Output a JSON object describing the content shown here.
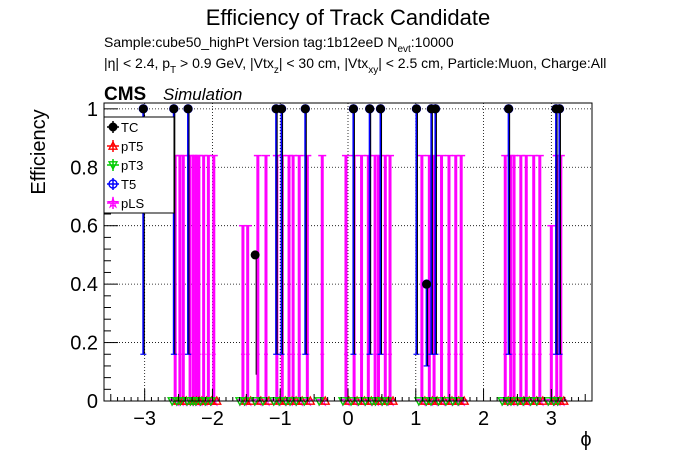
{
  "chart_data": {
    "type": "scatter",
    "title": "Efficiency of Track Candidate",
    "info_line1": "Sample:cube50_highPt   Version tag:1b12eeD  N",
    "info_line1_sub": "evt",
    "info_line1_end": ":10000",
    "info_line2_a": "|η| < 2.4, p",
    "info_line2_sub1": "T",
    "info_line2_b": " > 0.9 GeV, |Vtx",
    "info_line2_sub2": "z",
    "info_line2_c": "| < 30 cm, |Vtx",
    "info_line2_sub3": "xy",
    "info_line2_d": "| < 2.5 cm, Particle:Muon, Charge:All",
    "cms_label": "CMS",
    "simulation_label": "Simulation",
    "xlabel": "ϕ",
    "ylabel": "Efficiency",
    "xlim": [
      -3.6,
      3.6
    ],
    "ylim": [
      0,
      1.02
    ],
    "xticks": [
      -3,
      -2,
      -1,
      0,
      1,
      2,
      3
    ],
    "xtick_labels": [
      "−3",
      "−2",
      "−1",
      "0",
      "1",
      "2",
      "3"
    ],
    "yticks": [
      0,
      0.2,
      0.4,
      0.6,
      0.8,
      1
    ],
    "ytick_labels": [
      "0",
      "0.2",
      "0.4",
      "0.6",
      "0.8",
      "1"
    ],
    "grid": true,
    "legend_position": "top-left",
    "series": [
      {
        "name": "TC",
        "color": "#000000",
        "marker": "filled-circle",
        "points": [
          {
            "x": -3.02,
            "y": 1,
            "lo": 0.16
          },
          {
            "x": -2.57,
            "y": 1,
            "lo": 0.16
          },
          {
            "x": -2.36,
            "y": 1,
            "lo": 0.16
          },
          {
            "x": -1.37,
            "y": 0.5,
            "lo": 0.09
          },
          {
            "x": -1.06,
            "y": 1,
            "lo": 0.16
          },
          {
            "x": -0.98,
            "y": 1,
            "lo": 0.16
          },
          {
            "x": -0.63,
            "y": 1,
            "lo": 0.16
          },
          {
            "x": 0.08,
            "y": 1,
            "lo": 0.16
          },
          {
            "x": 0.32,
            "y": 1,
            "lo": 0.16
          },
          {
            "x": 0.48,
            "y": 1,
            "lo": 0.16
          },
          {
            "x": 1.01,
            "y": 1,
            "lo": 0.16
          },
          {
            "x": 1.16,
            "y": 0.4,
            "lo": 0.12
          },
          {
            "x": 1.23,
            "y": 1,
            "lo": 0.16
          },
          {
            "x": 1.29,
            "y": 1,
            "lo": 0.16
          },
          {
            "x": 2.37,
            "y": 1,
            "lo": 0.16
          },
          {
            "x": 3.07,
            "y": 1,
            "lo": 0.16
          },
          {
            "x": 3.12,
            "y": 1,
            "lo": 0.16
          }
        ]
      },
      {
        "name": "pT5",
        "color": "#ff0000",
        "marker": "open-triangle",
        "points": []
      },
      {
        "name": "pT3",
        "color": "#00cc00",
        "marker": "open-triangle-down",
        "points": []
      },
      {
        "name": "T5",
        "color": "#0000ff",
        "marker": "open-circle",
        "points": [
          {
            "x": -3.02,
            "y": 1,
            "lo": 0.16
          },
          {
            "x": -2.57,
            "y": 1,
            "lo": 0.16
          },
          {
            "x": -2.36,
            "y": 1,
            "lo": 0.16
          },
          {
            "x": -1.06,
            "y": 1,
            "lo": 0.16
          },
          {
            "x": -0.98,
            "y": 1,
            "lo": 0.16
          },
          {
            "x": -0.63,
            "y": 1,
            "lo": 0.16
          },
          {
            "x": 0.08,
            "y": 1,
            "lo": 0.16
          },
          {
            "x": 0.32,
            "y": 1,
            "lo": 0.16
          },
          {
            "x": 0.48,
            "y": 1,
            "lo": 0.16
          },
          {
            "x": 1.01,
            "y": 1,
            "lo": 0.16
          },
          {
            "x": 1.16,
            "y": 0.4,
            "lo": 0.12
          },
          {
            "x": 1.23,
            "y": 1,
            "lo": 0.16
          },
          {
            "x": 1.29,
            "y": 1,
            "lo": 0.16
          },
          {
            "x": 2.37,
            "y": 1,
            "lo": 0.16
          },
          {
            "x": 3.07,
            "y": 1,
            "lo": 0.16
          },
          {
            "x": 3.12,
            "y": 1,
            "lo": 0.16
          }
        ]
      },
      {
        "name": "pLS",
        "color": "#ff00ff",
        "marker": "open-star",
        "points": [
          {
            "x": -2.55,
            "y": 0,
            "hi": 0.84
          },
          {
            "x": -2.48,
            "y": 0,
            "hi": 0.84
          },
          {
            "x": -2.43,
            "y": 0,
            "hi": 0.84
          },
          {
            "x": -2.33,
            "y": 0,
            "hi": 0.84
          },
          {
            "x": -2.28,
            "y": 0,
            "hi": 0.84
          },
          {
            "x": -2.24,
            "y": 0,
            "hi": 0.84
          },
          {
            "x": -2.2,
            "y": 0,
            "hi": 0.84
          },
          {
            "x": -2.13,
            "y": 0,
            "hi": 0.84
          },
          {
            "x": -2.06,
            "y": 0,
            "hi": 0.84
          },
          {
            "x": -1.98,
            "y": 0,
            "hi": 0.84
          },
          {
            "x": -1.55,
            "y": 0,
            "hi": 0.6
          },
          {
            "x": -1.48,
            "y": 0,
            "hi": 0.6
          },
          {
            "x": -1.33,
            "y": 0,
            "hi": 0.84
          },
          {
            "x": -1.21,
            "y": 0,
            "hi": 0.84
          },
          {
            "x": -1.05,
            "y": 0,
            "hi": 0.84
          },
          {
            "x": -0.97,
            "y": 0,
            "hi": 0.84
          },
          {
            "x": -0.87,
            "y": 0,
            "hi": 0.84
          },
          {
            "x": -0.81,
            "y": 0,
            "hi": 0.84
          },
          {
            "x": -0.72,
            "y": 0,
            "hi": 0.84
          },
          {
            "x": -0.6,
            "y": 0,
            "hi": 0.84
          },
          {
            "x": -0.38,
            "y": 0,
            "hi": 0.84
          },
          {
            "x": -0.03,
            "y": 0,
            "hi": 0.84
          },
          {
            "x": 0.09,
            "y": 0,
            "hi": 0.84
          },
          {
            "x": 0.2,
            "y": 0,
            "hi": 0.84
          },
          {
            "x": 0.3,
            "y": 0,
            "hi": 0.84
          },
          {
            "x": 0.4,
            "y": 0,
            "hi": 0.84
          },
          {
            "x": 0.45,
            "y": 0,
            "hi": 0.84
          },
          {
            "x": 0.55,
            "y": 0,
            "hi": 0.84
          },
          {
            "x": 0.62,
            "y": 0,
            "hi": 0.84
          },
          {
            "x": 1.09,
            "y": 0,
            "hi": 0.84
          },
          {
            "x": 1.2,
            "y": 0,
            "hi": 0.84
          },
          {
            "x": 1.27,
            "y": 0,
            "hi": 0.84
          },
          {
            "x": 1.38,
            "y": 0,
            "hi": 0.84
          },
          {
            "x": 1.49,
            "y": 0,
            "hi": 0.84
          },
          {
            "x": 1.59,
            "y": 0,
            "hi": 0.84
          },
          {
            "x": 1.67,
            "y": 0,
            "hi": 0.84
          },
          {
            "x": 2.32,
            "y": 0,
            "hi": 0.84
          },
          {
            "x": 2.4,
            "y": 0,
            "hi": 0.84
          },
          {
            "x": 2.45,
            "y": 0,
            "hi": 0.84
          },
          {
            "x": 2.55,
            "y": 0,
            "hi": 0.84
          },
          {
            "x": 2.63,
            "y": 0,
            "hi": 0.84
          },
          {
            "x": 2.74,
            "y": 0,
            "hi": 0.84
          },
          {
            "x": 2.83,
            "y": 0,
            "hi": 0.84
          },
          {
            "x": 3.0,
            "y": 0,
            "hi": 0.6
          },
          {
            "x": 3.08,
            "y": 0,
            "hi": 0.84
          },
          {
            "x": 3.14,
            "y": 0,
            "hi": 0.84
          }
        ]
      }
    ]
  }
}
